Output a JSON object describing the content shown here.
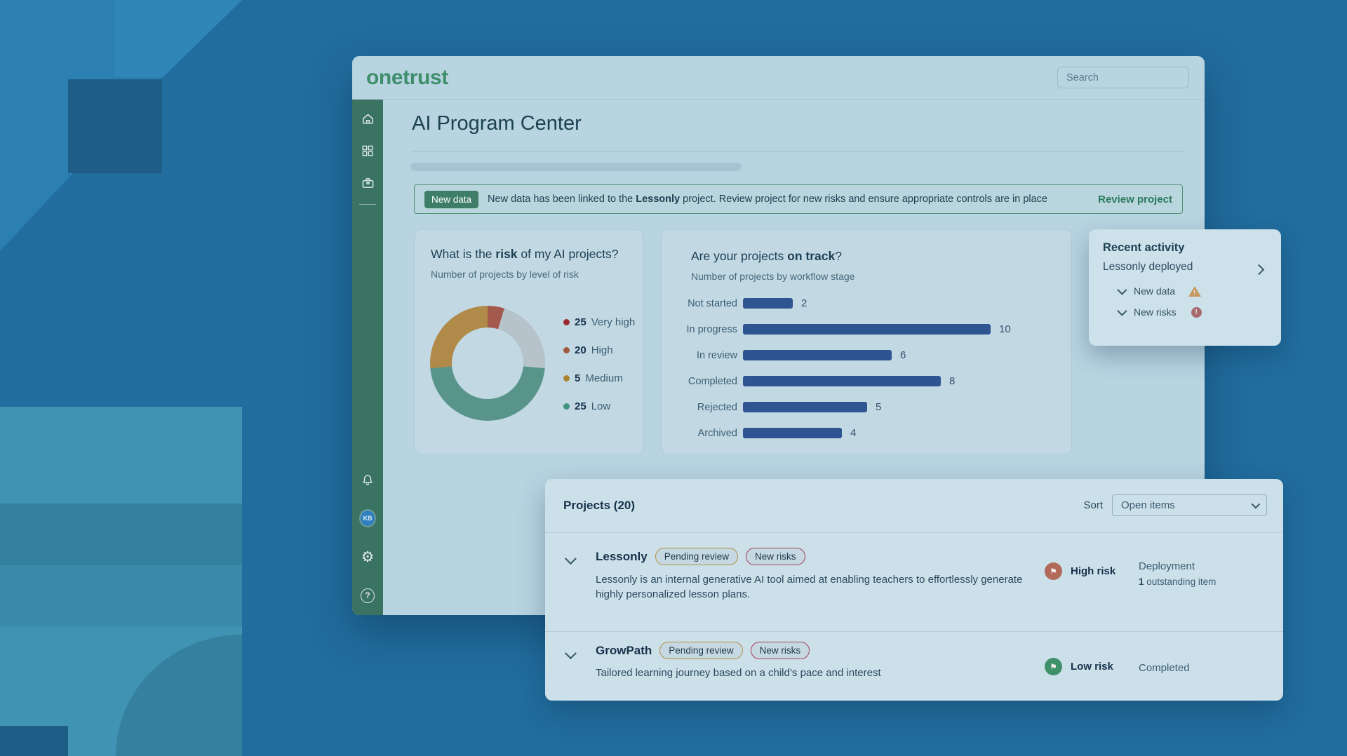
{
  "topbar": {
    "logo": "onetrust",
    "search_placeholder": "Search"
  },
  "sidebar": {
    "avatar_initials": "KB",
    "icons": [
      "home-icon",
      "apps-grid-icon",
      "briefcase-icon",
      "bell-icon",
      "avatar",
      "gear-icon",
      "help-icon"
    ],
    "gear_glyph": "⚙",
    "help_glyph": "?"
  },
  "page": {
    "title": "AI Program Center"
  },
  "banner": {
    "badge": "New data",
    "msg_pre": "New data has been linked to the ",
    "msg_bold": "Lessonly",
    "msg_post": " project. Review project for new risks and ensure appropriate controls are in place",
    "action": "Review project"
  },
  "chart_data": [
    {
      "type": "pie",
      "title_pre": "What is the ",
      "title_bold": "risk",
      "title_post": " of my AI projects?",
      "subtitle": "Number of projects by level of risk",
      "legend_position": "right",
      "series": [
        {
          "value": "25",
          "label": "Very high",
          "color": "#9c2b2e"
        },
        {
          "value": "20",
          "label": "High",
          "color": "#a15a3e"
        },
        {
          "value": "5",
          "label": "Medium",
          "color": "#a9842f"
        },
        {
          "value": "25",
          "label": "Low",
          "color": "#3d9480"
        }
      ],
      "donut_segments": [
        {
          "color": "#a3594c",
          "deg": 17
        },
        {
          "color": "#b6c3cb",
          "deg": 78
        },
        {
          "color": "#58948a",
          "deg": 170
        },
        {
          "color": "#b08a49",
          "deg": 95
        }
      ]
    },
    {
      "type": "bar",
      "title_pre": "Are your projects ",
      "title_bold": "on track",
      "title_post": "?",
      "subtitle": "Number of projects by workflow stage",
      "categories": [
        "Not started",
        "In progress",
        "In review",
        "Completed",
        "Rejected",
        "Archived"
      ],
      "values": [
        2,
        10,
        6,
        8,
        5,
        4
      ],
      "xlim": [
        0,
        10
      ],
      "bar_color": "#2e5491",
      "grid": false,
      "orientation": "horizontal"
    }
  ],
  "recent_activity": {
    "title": "Recent activity",
    "item": "Lessonly deployed",
    "rows": [
      {
        "label": "New data",
        "icon": "warning-triangle-icon"
      },
      {
        "label": "New risks",
        "icon": "alert-circle-icon"
      }
    ]
  },
  "projects": {
    "title": "Projects (20)",
    "sort_label": "Sort",
    "sort_value": "Open items",
    "flag_glyph": "⚑",
    "rows": [
      {
        "name": "Lessonly",
        "badges": [
          "Pending review",
          "New risks"
        ],
        "description": "Lessonly is an internal generative AI tool aimed at enabling teachers to effortlessly generate highly personalized lesson plans.",
        "risk": "High risk",
        "risk_color": "#b1695a",
        "status_top": "Deployment",
        "status_bold": "1",
        "status_rest": " outstanding item"
      },
      {
        "name": "GrowPath",
        "badges": [
          "Pending review",
          "New risks"
        ],
        "description": "Tailored learning journey based on a child’s pace and interest",
        "risk": "Low risk",
        "risk_color": "#3f9168",
        "status_top": "Completed",
        "status_bold": "",
        "status_rest": ""
      }
    ]
  }
}
